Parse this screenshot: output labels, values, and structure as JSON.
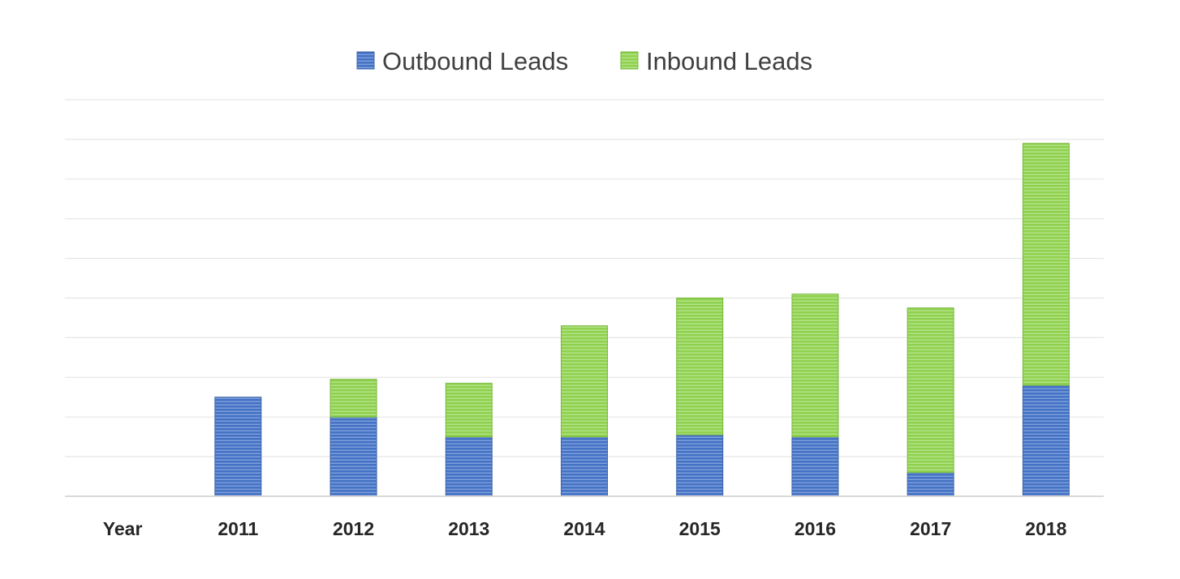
{
  "chart_data": {
    "type": "bar",
    "stacked": true,
    "title": "",
    "xlabel": "",
    "ylabel": "",
    "y_axis_labels_shown": false,
    "categories": [
      "Year",
      "2011",
      "2012",
      "2013",
      "2014",
      "2015",
      "2016",
      "2017",
      "2018"
    ],
    "ylim": [
      0,
      10
    ],
    "grid": true,
    "legend_position": "top-center",
    "series": [
      {
        "name": "Outbound Leads",
        "color": "#4472C4",
        "values": [
          0,
          2.5,
          2.0,
          1.5,
          1.5,
          1.55,
          1.5,
          0.6,
          2.8
        ]
      },
      {
        "name": "Inbound Leads",
        "color": "#8FD14F",
        "values": [
          0,
          0,
          0.95,
          1.35,
          2.8,
          3.45,
          3.6,
          4.15,
          6.1
        ]
      }
    ]
  }
}
